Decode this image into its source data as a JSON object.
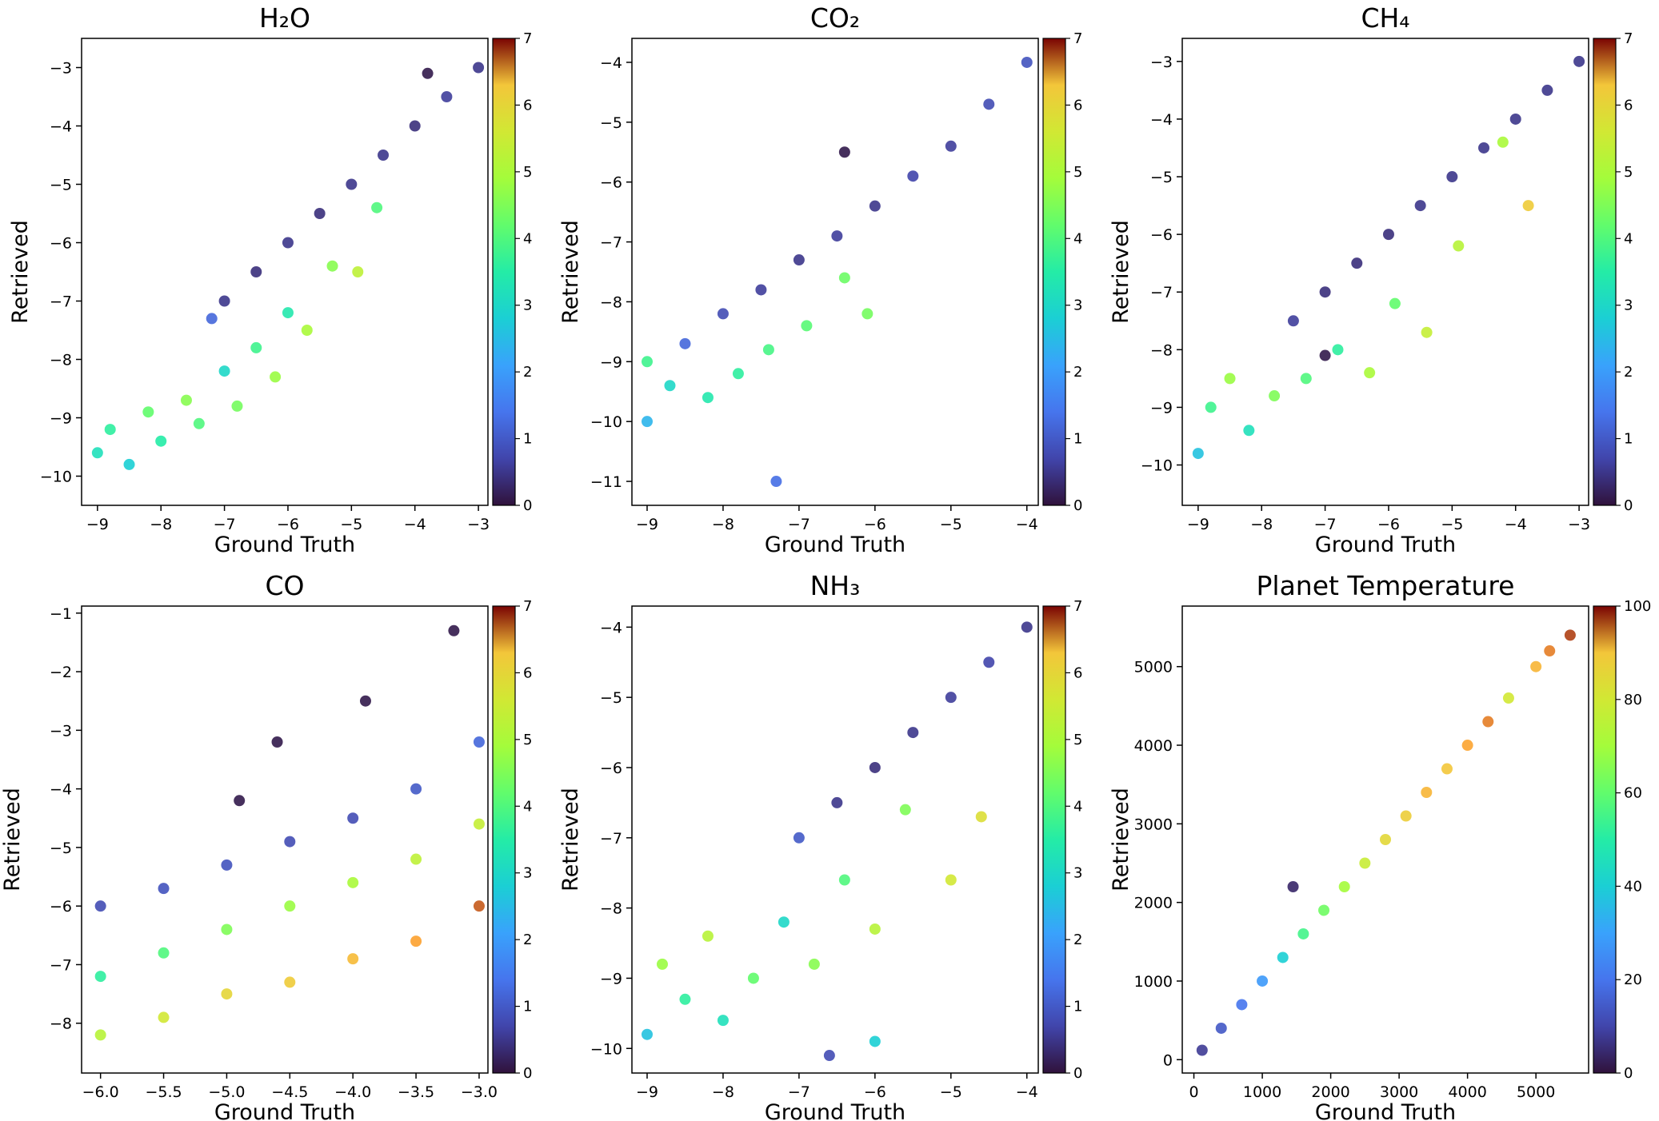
{
  "chart_data": [
    {
      "type": "scatter",
      "title": "H₂O",
      "xlabel": "Ground Truth",
      "ylabel": "Retrieved",
      "xlim": [
        -9.25,
        -2.85
      ],
      "ylim": [
        -10.5,
        -2.5
      ],
      "xticks": [
        -9,
        -8,
        -7,
        -6,
        -5,
        -4,
        -3
      ],
      "yticks": [
        -10,
        -9,
        -8,
        -7,
        -6,
        -5,
        -4,
        -3
      ],
      "xtick_labels": [
        "−9",
        "−8",
        "−7",
        "−6",
        "−5",
        "−4",
        "−3"
      ],
      "ytick_labels": [
        "−10",
        "−9",
        "−8",
        "−7",
        "−6",
        "−5",
        "−4",
        "−3"
      ],
      "colorbar": {
        "min": 0,
        "max": 7,
        "ticks": [
          0,
          1,
          2,
          3,
          4,
          5,
          6,
          7
        ],
        "tick_labels": [
          "0",
          "1",
          "2",
          "3",
          "4",
          "5",
          "6",
          "7"
        ]
      },
      "points": [
        {
          "x": -9.0,
          "y": -9.6,
          "c": 3.2
        },
        {
          "x": -8.8,
          "y": -9.2,
          "c": 3.6
        },
        {
          "x": -8.5,
          "y": -9.8,
          "c": 2.8
        },
        {
          "x": -8.2,
          "y": -8.9,
          "c": 4.2
        },
        {
          "x": -8.0,
          "y": -9.4,
          "c": 3.5
        },
        {
          "x": -7.6,
          "y": -8.7,
          "c": 4.6
        },
        {
          "x": -7.4,
          "y": -9.1,
          "c": 4.0
        },
        {
          "x": -7.2,
          "y": -7.3,
          "c": 1.2
        },
        {
          "x": -7.0,
          "y": -7.0,
          "c": 0.5
        },
        {
          "x": -7.0,
          "y": -8.2,
          "c": 3.0
        },
        {
          "x": -6.8,
          "y": -8.8,
          "c": 4.4
        },
        {
          "x": -6.5,
          "y": -6.5,
          "c": 0.4
        },
        {
          "x": -6.5,
          "y": -7.8,
          "c": 3.8
        },
        {
          "x": -6.2,
          "y": -8.3,
          "c": 4.8
        },
        {
          "x": -6.0,
          "y": -6.0,
          "c": 0.5
        },
        {
          "x": -6.0,
          "y": -7.2,
          "c": 3.4
        },
        {
          "x": -5.7,
          "y": -7.5,
          "c": 5.0
        },
        {
          "x": -5.5,
          "y": -5.5,
          "c": 0.4
        },
        {
          "x": -5.3,
          "y": -6.4,
          "c": 4.6
        },
        {
          "x": -5.0,
          "y": -5.0,
          "c": 0.5
        },
        {
          "x": -4.9,
          "y": -6.5,
          "c": 5.3
        },
        {
          "x": -4.6,
          "y": -5.4,
          "c": 4.0
        },
        {
          "x": -4.5,
          "y": -4.5,
          "c": 0.5
        },
        {
          "x": -4.0,
          "y": -4.0,
          "c": 0.4
        },
        {
          "x": -3.5,
          "y": -3.5,
          "c": 0.6
        },
        {
          "x": -3.8,
          "y": -3.1,
          "c": 0.1
        },
        {
          "x": -3.0,
          "y": -3.0,
          "c": 0.5
        }
      ]
    },
    {
      "type": "scatter",
      "title": "CO₂",
      "xlabel": "Ground Truth",
      "ylabel": "Retrieved",
      "xlim": [
        -9.2,
        -3.85
      ],
      "ylim": [
        -11.4,
        -3.6
      ],
      "xticks": [
        -9,
        -8,
        -7,
        -6,
        -5,
        -4
      ],
      "yticks": [
        -11,
        -10,
        -9,
        -8,
        -7,
        -6,
        -5,
        -4
      ],
      "xtick_labels": [
        "−9",
        "−8",
        "−7",
        "−6",
        "−5",
        "−4"
      ],
      "ytick_labels": [
        "−11",
        "−10",
        "−9",
        "−8",
        "−7",
        "−6",
        "−5",
        "−4"
      ],
      "colorbar": {
        "min": 0,
        "max": 7,
        "ticks": [
          0,
          1,
          2,
          3,
          4,
          5,
          6,
          7
        ],
        "tick_labels": [
          "0",
          "1",
          "2",
          "3",
          "4",
          "5",
          "6",
          "7"
        ]
      },
      "points": [
        {
          "x": -9.0,
          "y": -10.0,
          "c": 2.4
        },
        {
          "x": -9.0,
          "y": -9.0,
          "c": 3.8
        },
        {
          "x": -8.7,
          "y": -9.4,
          "c": 3.0
        },
        {
          "x": -8.5,
          "y": -8.7,
          "c": 1.2
        },
        {
          "x": -8.2,
          "y": -9.6,
          "c": 3.4
        },
        {
          "x": -8.0,
          "y": -8.2,
          "c": 0.8
        },
        {
          "x": -7.8,
          "y": -9.2,
          "c": 3.6
        },
        {
          "x": -7.5,
          "y": -7.8,
          "c": 0.6
        },
        {
          "x": -7.4,
          "y": -8.8,
          "c": 3.9
        },
        {
          "x": -7.0,
          "y": -7.3,
          "c": 0.5
        },
        {
          "x": -6.9,
          "y": -8.4,
          "c": 4.1
        },
        {
          "x": -6.5,
          "y": -6.9,
          "c": 0.6
        },
        {
          "x": -6.4,
          "y": -7.6,
          "c": 4.3
        },
        {
          "x": -6.0,
          "y": -6.4,
          "c": 0.5
        },
        {
          "x": -6.1,
          "y": -8.2,
          "c": 4.4
        },
        {
          "x": -5.5,
          "y": -5.9,
          "c": 0.7
        },
        {
          "x": -5.0,
          "y": -5.4,
          "c": 0.6
        },
        {
          "x": -4.5,
          "y": -4.7,
          "c": 0.8
        },
        {
          "x": -4.0,
          "y": -4.0,
          "c": 0.9
        },
        {
          "x": -7.3,
          "y": -11.0,
          "c": 1.3
        },
        {
          "x": -6.4,
          "y": -5.5,
          "c": 0.1
        }
      ]
    },
    {
      "type": "scatter",
      "title": "CH₄",
      "xlabel": "Ground Truth",
      "ylabel": "Retrieved",
      "xlim": [
        -9.25,
        -2.85
      ],
      "ylim": [
        -10.7,
        -2.6
      ],
      "xticks": [
        -9,
        -8,
        -7,
        -6,
        -5,
        -4,
        -3
      ],
      "yticks": [
        -10,
        -9,
        -8,
        -7,
        -6,
        -5,
        -4,
        -3
      ],
      "xtick_labels": [
        "−9",
        "−8",
        "−7",
        "−6",
        "−5",
        "−4",
        "−3"
      ],
      "ytick_labels": [
        "−10",
        "−9",
        "−8",
        "−7",
        "−6",
        "−5",
        "−4",
        "−3"
      ],
      "colorbar": {
        "min": 0,
        "max": 7,
        "ticks": [
          0,
          1,
          2,
          3,
          4,
          5,
          6,
          7
        ],
        "tick_labels": [
          "0",
          "1",
          "2",
          "3",
          "4",
          "5",
          "6",
          "7"
        ]
      },
      "points": [
        {
          "x": -9.0,
          "y": -9.8,
          "c": 2.6
        },
        {
          "x": -8.8,
          "y": -9.0,
          "c": 3.8
        },
        {
          "x": -8.5,
          "y": -8.5,
          "c": 4.8
        },
        {
          "x": -8.2,
          "y": -9.4,
          "c": 3.2
        },
        {
          "x": -7.8,
          "y": -8.8,
          "c": 4.5
        },
        {
          "x": -7.5,
          "y": -7.5,
          "c": 0.6
        },
        {
          "x": -7.3,
          "y": -8.5,
          "c": 4.0
        },
        {
          "x": -7.0,
          "y": -7.0,
          "c": 0.4
        },
        {
          "x": -6.8,
          "y": -8.0,
          "c": 3.6
        },
        {
          "x": -6.5,
          "y": -6.5,
          "c": 0.4
        },
        {
          "x": -6.3,
          "y": -8.4,
          "c": 5.0
        },
        {
          "x": -6.0,
          "y": -6.0,
          "c": 0.4
        },
        {
          "x": -5.9,
          "y": -7.2,
          "c": 4.2
        },
        {
          "x": -5.5,
          "y": -5.5,
          "c": 0.5
        },
        {
          "x": -5.4,
          "y": -7.7,
          "c": 5.4
        },
        {
          "x": -5.0,
          "y": -5.0,
          "c": 0.5
        },
        {
          "x": -4.9,
          "y": -6.2,
          "c": 5.2
        },
        {
          "x": -4.5,
          "y": -4.5,
          "c": 0.5
        },
        {
          "x": -4.2,
          "y": -4.4,
          "c": 5.0
        },
        {
          "x": -4.0,
          "y": -4.0,
          "c": 0.5
        },
        {
          "x": -3.8,
          "y": -5.5,
          "c": 6.2
        },
        {
          "x": -3.5,
          "y": -3.5,
          "c": 0.5
        },
        {
          "x": -3.0,
          "y": -3.0,
          "c": 0.5
        },
        {
          "x": -7.0,
          "y": -8.1,
          "c": 0.1
        }
      ]
    },
    {
      "type": "scatter",
      "title": "CO",
      "xlabel": "Ground Truth",
      "ylabel": "Retrieved",
      "xlim": [
        -6.15,
        -2.93
      ],
      "ylim": [
        -8.85,
        -0.88
      ],
      "xticks": [
        -6.0,
        -5.5,
        -5.0,
        -4.5,
        -4.0,
        -3.5,
        -3.0
      ],
      "yticks": [
        -8,
        -7,
        -6,
        -5,
        -4,
        -3,
        -2,
        -1
      ],
      "xtick_labels": [
        "−6.0",
        "−5.5",
        "−5.0",
        "−4.5",
        "−4.0",
        "−3.5",
        "−3.0"
      ],
      "ytick_labels": [
        "−8",
        "−7",
        "−6",
        "−5",
        "−4",
        "−3",
        "−2",
        "−1"
      ],
      "colorbar": {
        "min": 0,
        "max": 7,
        "ticks": [
          0,
          1,
          2,
          3,
          4,
          5,
          6,
          7
        ],
        "tick_labels": [
          "0",
          "1",
          "2",
          "3",
          "4",
          "5",
          "6",
          "7"
        ]
      },
      "points": [
        {
          "x": -6.0,
          "y": -6.0,
          "c": 0.8
        },
        {
          "x": -6.0,
          "y": -7.2,
          "c": 3.6
        },
        {
          "x": -6.0,
          "y": -8.2,
          "c": 5.2
        },
        {
          "x": -5.5,
          "y": -5.7,
          "c": 0.9
        },
        {
          "x": -5.5,
          "y": -6.8,
          "c": 4.0
        },
        {
          "x": -5.5,
          "y": -7.9,
          "c": 5.6
        },
        {
          "x": -5.0,
          "y": -5.3,
          "c": 0.9
        },
        {
          "x": -5.0,
          "y": -6.4,
          "c": 4.5
        },
        {
          "x": -5.0,
          "y": -7.5,
          "c": 6.0
        },
        {
          "x": -4.5,
          "y": -4.9,
          "c": 0.8
        },
        {
          "x": -4.5,
          "y": -6.0,
          "c": 4.8
        },
        {
          "x": -4.5,
          "y": -7.3,
          "c": 6.2
        },
        {
          "x": -4.0,
          "y": -4.5,
          "c": 0.8
        },
        {
          "x": -4.0,
          "y": -5.6,
          "c": 5.0
        },
        {
          "x": -4.0,
          "y": -6.9,
          "c": 6.4
        },
        {
          "x": -3.5,
          "y": -4.0,
          "c": 1.0
        },
        {
          "x": -3.5,
          "y": -5.2,
          "c": 5.3
        },
        {
          "x": -3.5,
          "y": -6.6,
          "c": 6.6
        },
        {
          "x": -3.0,
          "y": -3.2,
          "c": 1.2
        },
        {
          "x": -3.0,
          "y": -4.6,
          "c": 5.4
        },
        {
          "x": -3.0,
          "y": -6.0,
          "c": 6.8
        },
        {
          "x": -3.2,
          "y": -1.3,
          "c": 0.1
        },
        {
          "x": -3.9,
          "y": -2.5,
          "c": 0.1
        },
        {
          "x": -4.6,
          "y": -3.2,
          "c": 0.1
        },
        {
          "x": -4.9,
          "y": -4.2,
          "c": 0.1
        }
      ]
    },
    {
      "type": "scatter",
      "title": "NH₃",
      "xlabel": "Ground Truth",
      "ylabel": "Retrieved",
      "xlim": [
        -9.2,
        -3.85
      ],
      "ylim": [
        -10.35,
        -3.7
      ],
      "xticks": [
        -9,
        -8,
        -7,
        -6,
        -5,
        -4
      ],
      "yticks": [
        -10,
        -9,
        -8,
        -7,
        -6,
        -5,
        -4
      ],
      "xtick_labels": [
        "−9",
        "−8",
        "−7",
        "−6",
        "−5",
        "−4"
      ],
      "ytick_labels": [
        "−10",
        "−9",
        "−8",
        "−7",
        "−6",
        "−5",
        "−4"
      ],
      "colorbar": {
        "min": 0,
        "max": 7,
        "ticks": [
          0,
          1,
          2,
          3,
          4,
          5,
          6,
          7
        ],
        "tick_labels": [
          "0",
          "1",
          "2",
          "3",
          "4",
          "5",
          "6",
          "7"
        ]
      },
      "points": [
        {
          "x": -9.0,
          "y": -9.8,
          "c": 2.6
        },
        {
          "x": -8.8,
          "y": -8.8,
          "c": 4.8
        },
        {
          "x": -8.5,
          "y": -9.3,
          "c": 3.6
        },
        {
          "x": -8.2,
          "y": -8.4,
          "c": 5.2
        },
        {
          "x": -8.0,
          "y": -9.6,
          "c": 3.2
        },
        {
          "x": -7.6,
          "y": -9.0,
          "c": 4.2
        },
        {
          "x": -7.2,
          "y": -8.2,
          "c": 3.0
        },
        {
          "x": -7.0,
          "y": -7.0,
          "c": 1.0
        },
        {
          "x": -6.8,
          "y": -8.8,
          "c": 4.6
        },
        {
          "x": -6.5,
          "y": -6.5,
          "c": 0.5
        },
        {
          "x": -6.4,
          "y": -7.6,
          "c": 4.0
        },
        {
          "x": -6.0,
          "y": -6.0,
          "c": 0.4
        },
        {
          "x": -6.0,
          "y": -8.3,
          "c": 5.2
        },
        {
          "x": -5.5,
          "y": -5.5,
          "c": 0.5
        },
        {
          "x": -5.6,
          "y": -6.6,
          "c": 4.5
        },
        {
          "x": -5.0,
          "y": -5.0,
          "c": 0.6
        },
        {
          "x": -5.0,
          "y": -7.6,
          "c": 5.6
        },
        {
          "x": -4.5,
          "y": -4.5,
          "c": 0.7
        },
        {
          "x": -4.6,
          "y": -6.7,
          "c": 5.8
        },
        {
          "x": -4.0,
          "y": -4.0,
          "c": 0.5
        },
        {
          "x": -6.6,
          "y": -10.1,
          "c": 0.8
        },
        {
          "x": -6.0,
          "y": -9.9,
          "c": 2.8
        }
      ]
    },
    {
      "type": "scatter",
      "title": "Planet Temperature",
      "xlabel": "Ground Truth",
      "ylabel": "Retrieved",
      "xlim": [
        -170,
        5770
      ],
      "ylim": [
        -170,
        5770
      ],
      "xticks": [
        0,
        1000,
        2000,
        3000,
        4000,
        5000
      ],
      "yticks": [
        0,
        1000,
        2000,
        3000,
        4000,
        5000
      ],
      "xtick_labels": [
        "0",
        "1000",
        "2000",
        "3000",
        "4000",
        "5000"
      ],
      "ytick_labels": [
        "0",
        "1000",
        "2000",
        "3000",
        "4000",
        "5000"
      ],
      "colorbar": {
        "min": 0,
        "max": 100,
        "ticks": [
          0,
          20,
          40,
          60,
          80,
          100
        ],
        "tick_labels": [
          "0",
          "20",
          "40",
          "60",
          "80",
          "100"
        ]
      },
      "points": [
        {
          "x": 120,
          "y": 120,
          "c": 8
        },
        {
          "x": 400,
          "y": 400,
          "c": 14
        },
        {
          "x": 700,
          "y": 700,
          "c": 20
        },
        {
          "x": 1000,
          "y": 1000,
          "c": 28
        },
        {
          "x": 1300,
          "y": 1300,
          "c": 40
        },
        {
          "x": 1600,
          "y": 1600,
          "c": 55
        },
        {
          "x": 1900,
          "y": 1900,
          "c": 62
        },
        {
          "x": 2200,
          "y": 2200,
          "c": 70
        },
        {
          "x": 2500,
          "y": 2500,
          "c": 78
        },
        {
          "x": 2800,
          "y": 2800,
          "c": 85
        },
        {
          "x": 3100,
          "y": 3100,
          "c": 88
        },
        {
          "x": 3400,
          "y": 3400,
          "c": 92
        },
        {
          "x": 3700,
          "y": 3700,
          "c": 90
        },
        {
          "x": 4000,
          "y": 4000,
          "c": 94
        },
        {
          "x": 4300,
          "y": 4300,
          "c": 96
        },
        {
          "x": 4600,
          "y": 4600,
          "c": 80
        },
        {
          "x": 5000,
          "y": 5000,
          "c": 92
        },
        {
          "x": 5200,
          "y": 5200,
          "c": 96
        },
        {
          "x": 5500,
          "y": 5400,
          "c": 98
        },
        {
          "x": 1450,
          "y": 2200,
          "c": 4
        }
      ]
    }
  ]
}
